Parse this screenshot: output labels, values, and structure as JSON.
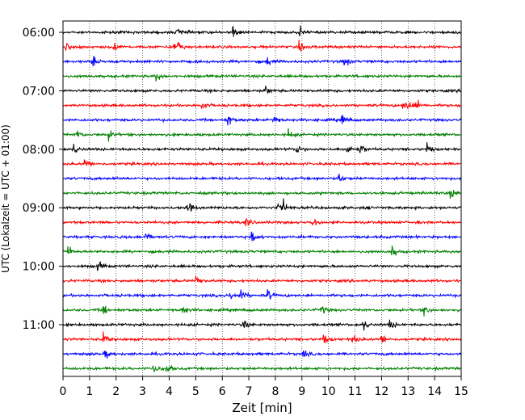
{
  "chart_data": {
    "type": "line",
    "title": "",
    "xlabel": "Zeit  [min]",
    "ylabel": "UTC (Lokalzeit = UTC + 01:00)",
    "xlim": [
      0,
      15
    ],
    "x_ticks": [
      0,
      1,
      2,
      3,
      4,
      5,
      6,
      7,
      8,
      9,
      10,
      11,
      12,
      13,
      14,
      15
    ],
    "y_ticks": [
      "06:00",
      "07:00",
      "08:00",
      "09:00",
      "10:00",
      "11:00"
    ],
    "grid": "vertical-dotted",
    "trace_interval_minutes": 15,
    "start_time": "06:00",
    "trace_colors": [
      "#000000",
      "#ff0000",
      "#0000ff",
      "#008000"
    ],
    "traces": [
      {
        "time": "06:00",
        "color": "#000000",
        "events_min": [
          4.3,
          6.4,
          8.9
        ]
      },
      {
        "time": "06:15",
        "color": "#ff0000",
        "events_min": [
          0.1,
          1.9,
          4.1,
          4.3,
          8.9
        ]
      },
      {
        "time": "06:30",
        "color": "#0000ff",
        "events_min": [
          1.1,
          7.7,
          10.6
        ]
      },
      {
        "time": "06:45",
        "color": "#008000",
        "events_min": [
          3.5
        ]
      },
      {
        "time": "07:00",
        "color": "#000000",
        "events_min": [
          7.6
        ]
      },
      {
        "time": "07:15",
        "color": "#ff0000",
        "events_min": [
          5.2,
          12.8,
          13.0,
          13.3
        ]
      },
      {
        "time": "07:30",
        "color": "#0000ff",
        "events_min": [
          6.2,
          7.9,
          10.5
        ]
      },
      {
        "time": "07:45",
        "color": "#008000",
        "events_min": [
          0.5,
          1.7,
          8.5
        ]
      },
      {
        "time": "08:00",
        "color": "#000000",
        "events_min": [
          0.4,
          8.8,
          10.7,
          11.2,
          13.7
        ]
      },
      {
        "time": "08:15",
        "color": "#ff0000",
        "events_min": [
          0.8
        ]
      },
      {
        "time": "08:30",
        "color": "#0000ff",
        "events_min": [
          10.4
        ]
      },
      {
        "time": "08:45",
        "color": "#008000",
        "events_min": [
          14.6
        ]
      },
      {
        "time": "09:00",
        "color": "#000000",
        "events_min": [
          4.7,
          8.1,
          8.3
        ]
      },
      {
        "time": "09:15",
        "color": "#ff0000",
        "events_min": [
          6.9,
          9.4
        ]
      },
      {
        "time": "09:30",
        "color": "#0000ff",
        "events_min": [
          3.1,
          7.1
        ]
      },
      {
        "time": "09:45",
        "color": "#008000",
        "events_min": [
          0.2,
          12.4
        ]
      },
      {
        "time": "10:00",
        "color": "#000000",
        "events_min": [
          1.3
        ]
      },
      {
        "time": "10:15",
        "color": "#ff0000",
        "events_min": [
          5.0
        ]
      },
      {
        "time": "10:30",
        "color": "#0000ff",
        "events_min": [
          6.3,
          6.7,
          7.7
        ]
      },
      {
        "time": "10:45",
        "color": "#008000",
        "events_min": [
          1.5,
          4.5,
          9.7,
          13.6
        ]
      },
      {
        "time": "11:00",
        "color": "#000000",
        "events_min": [
          6.8,
          11.3,
          12.3
        ]
      },
      {
        "time": "11:15",
        "color": "#ff0000",
        "events_min": [
          1.5,
          9.8,
          10.9,
          12.0
        ]
      },
      {
        "time": "11:30",
        "color": "#0000ff",
        "events_min": [
          1.6,
          9.0
        ]
      },
      {
        "time": "11:45",
        "color": "#008000",
        "events_min": [
          3.4,
          3.9
        ]
      }
    ]
  }
}
